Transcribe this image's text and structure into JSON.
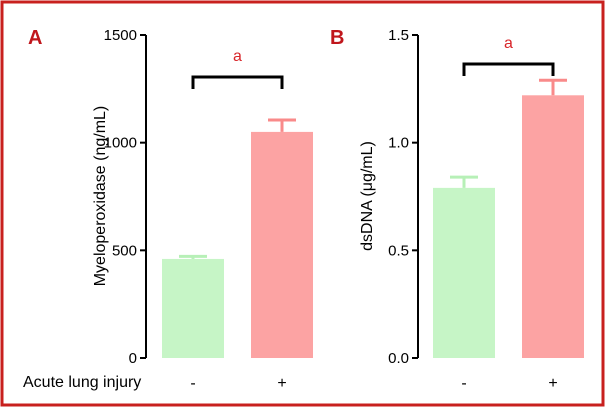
{
  "condition_label": "Acute lung injury",
  "group_labels": [
    "-",
    "+"
  ],
  "colors": {
    "border": "#c8201e",
    "panel_letter": "#c0161c",
    "sig_letter": "#d8262a",
    "control_bar": "#c6f5c6",
    "control_error": "#b7f0b7",
    "injury_bar": "#fca3a3",
    "injury_error": "#f98a8a",
    "axis": "#000000"
  },
  "chart_data": [
    {
      "panel": "A",
      "type": "bar",
      "categories": [
        "-",
        "+"
      ],
      "values": [
        460,
        1050
      ],
      "errors": [
        12,
        55
      ],
      "ylabel": "Myeloperoxidase (ng/mL)",
      "ylim": [
        0,
        1500
      ],
      "yticks": [
        0,
        500,
        1000,
        1500
      ],
      "ytick_labels": [
        "0",
        "500",
        "1000",
        "1500"
      ],
      "significance": {
        "label": "a",
        "between": [
          0,
          1
        ]
      }
    },
    {
      "panel": "B",
      "type": "bar",
      "categories": [
        "-",
        "+"
      ],
      "values": [
        0.79,
        1.22
      ],
      "errors": [
        0.05,
        0.07
      ],
      "ylabel": "dsDNA (μg/mL)",
      "ylim": [
        0,
        1.5
      ],
      "yticks": [
        0,
        0.5,
        1.0,
        1.5
      ],
      "ytick_labels": [
        "0.0",
        "0.5",
        "1.0",
        "1.5"
      ],
      "significance": {
        "label": "a",
        "between": [
          0,
          1
        ]
      }
    }
  ]
}
